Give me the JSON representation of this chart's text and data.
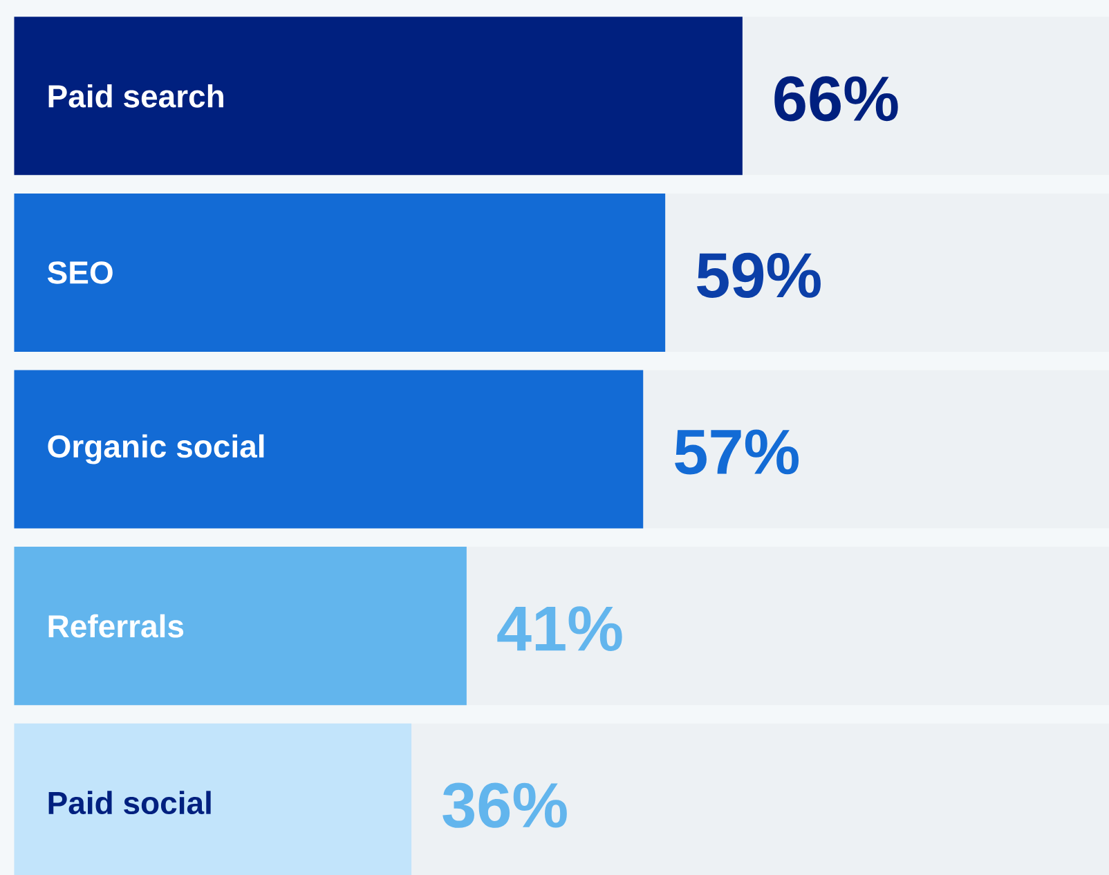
{
  "chart_data": {
    "type": "bar",
    "orientation": "horizontal",
    "categories": [
      "Paid search",
      "SEO",
      "Organic social",
      "Referrals",
      "Paid social"
    ],
    "values": [
      66,
      59,
      57,
      41,
      36
    ],
    "value_labels": [
      "66%",
      "59%",
      "57%",
      "41%",
      "36%"
    ],
    "colors": [
      "#00207f",
      "#136bd5",
      "#136bd5",
      "#62b5ed",
      "#c2e4fb"
    ],
    "xlim": [
      0,
      100
    ]
  }
}
